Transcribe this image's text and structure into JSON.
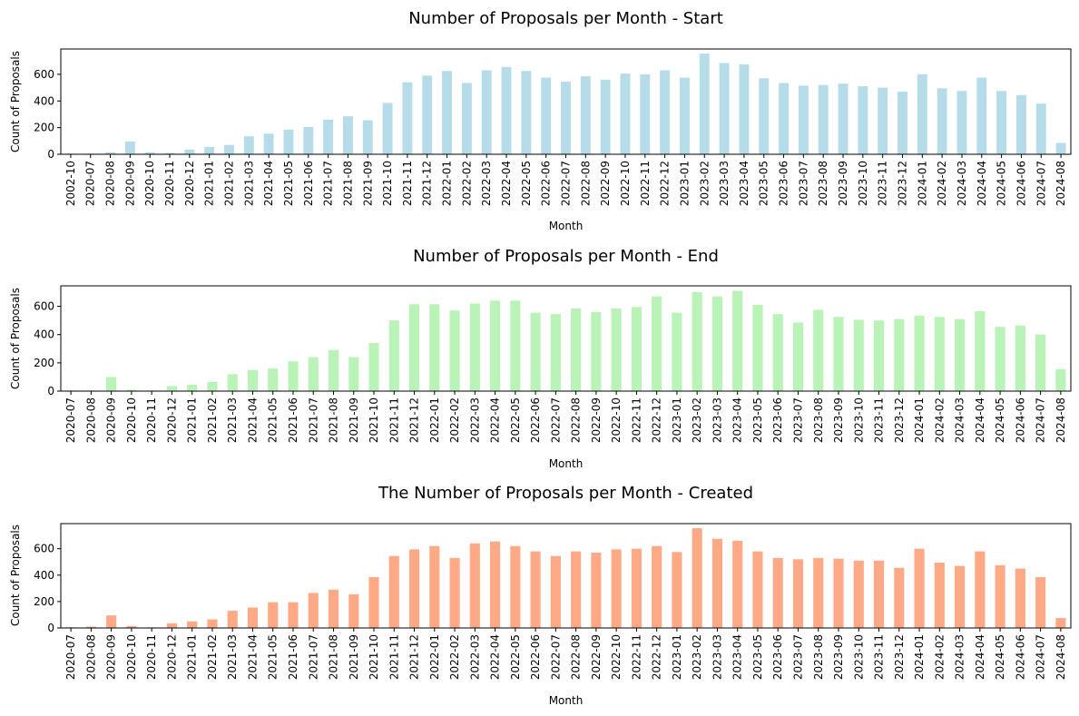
{
  "chart_data": [
    {
      "type": "bar",
      "title": "Number of Proposals per Month - Start",
      "xlabel": "Month",
      "ylabel": "Count of Proposals",
      "ylim": [
        0,
        790
      ],
      "yticks": [
        0,
        200,
        400,
        600
      ],
      "grid": false,
      "color": "#add8e6",
      "categories": [
        "2002-10",
        "2020-07",
        "2020-08",
        "2020-09",
        "2020-10",
        "2020-11",
        "2020-12",
        "2021-01",
        "2021-02",
        "2021-03",
        "2021-04",
        "2021-05",
        "2021-06",
        "2021-07",
        "2021-08",
        "2021-09",
        "2021-10",
        "2021-11",
        "2021-12",
        "2022-01",
        "2022-02",
        "2022-03",
        "2022-04",
        "2022-05",
        "2022-06",
        "2022-07",
        "2022-08",
        "2022-09",
        "2022-10",
        "2022-11",
        "2022-12",
        "2023-01",
        "2023-02",
        "2023-03",
        "2023-04",
        "2023-05",
        "2023-06",
        "2023-07",
        "2023-08",
        "2023-09",
        "2023-10",
        "2023-11",
        "2023-12",
        "2024-01",
        "2024-02",
        "2024-03",
        "2024-04",
        "2024-05",
        "2024-06",
        "2024-07",
        "2024-08"
      ],
      "values": [
        5,
        5,
        15,
        95,
        15,
        10,
        35,
        55,
        70,
        135,
        155,
        185,
        205,
        260,
        285,
        255,
        385,
        540,
        590,
        625,
        535,
        630,
        655,
        625,
        575,
        545,
        585,
        560,
        605,
        600,
        630,
        575,
        755,
        685,
        675,
        570,
        535,
        515,
        520,
        530,
        510,
        500,
        470,
        600,
        495,
        475,
        575,
        475,
        445,
        380,
        85
      ]
    },
    {
      "type": "bar",
      "title": "Number of Proposals per Month - End",
      "xlabel": "Month",
      "ylabel": "Count of Proposals",
      "ylim": [
        0,
        745
      ],
      "yticks": [
        0,
        200,
        400,
        600
      ],
      "grid": false,
      "color": "#b2f2b0",
      "categories": [
        "2020-07",
        "2020-08",
        "2020-09",
        "2020-10",
        "2020-11",
        "2020-12",
        "2021-01",
        "2021-02",
        "2021-03",
        "2021-04",
        "2021-05",
        "2021-06",
        "2021-07",
        "2021-08",
        "2021-09",
        "2021-10",
        "2021-11",
        "2021-12",
        "2022-01",
        "2022-02",
        "2022-03",
        "2022-04",
        "2022-05",
        "2022-06",
        "2022-07",
        "2022-08",
        "2022-09",
        "2022-10",
        "2022-11",
        "2022-12",
        "2023-01",
        "2023-02",
        "2023-03",
        "2023-04",
        "2023-05",
        "2023-06",
        "2023-07",
        "2023-08",
        "2023-09",
        "2023-10",
        "2023-11",
        "2023-12",
        "2024-01",
        "2024-02",
        "2024-03",
        "2024-04",
        "2024-05",
        "2024-06",
        "2024-07",
        "2024-08"
      ],
      "values": [
        5,
        5,
        100,
        10,
        5,
        35,
        45,
        65,
        120,
        150,
        160,
        210,
        240,
        290,
        240,
        340,
        500,
        615,
        615,
        570,
        620,
        640,
        640,
        555,
        545,
        585,
        560,
        585,
        595,
        670,
        555,
        700,
        670,
        710,
        610,
        545,
        485,
        575,
        525,
        505,
        500,
        510,
        535,
        525,
        510,
        565,
        455,
        465,
        400,
        155
      ]
    },
    {
      "type": "bar",
      "title": "The Number of Proposals per Month - Created",
      "xlabel": "Month",
      "ylabel": "Count of Proposals",
      "ylim": [
        0,
        790
      ],
      "yticks": [
        0,
        200,
        400,
        600
      ],
      "grid": false,
      "color": "#ffa07a",
      "categories": [
        "2020-07",
        "2020-08",
        "2020-09",
        "2020-10",
        "2020-11",
        "2020-12",
        "2021-01",
        "2021-02",
        "2021-03",
        "2021-04",
        "2021-05",
        "2021-06",
        "2021-07",
        "2021-08",
        "2021-09",
        "2021-10",
        "2021-11",
        "2021-12",
        "2022-01",
        "2022-02",
        "2022-03",
        "2022-04",
        "2022-05",
        "2022-06",
        "2022-07",
        "2022-08",
        "2022-09",
        "2022-10",
        "2022-11",
        "2022-12",
        "2023-01",
        "2023-02",
        "2023-03",
        "2023-04",
        "2023-05",
        "2023-06",
        "2023-07",
        "2023-08",
        "2023-09",
        "2023-10",
        "2023-11",
        "2023-12",
        "2024-01",
        "2024-02",
        "2024-03",
        "2024-04",
        "2024-05",
        "2024-06",
        "2024-07",
        "2024-08"
      ],
      "values": [
        5,
        10,
        95,
        15,
        5,
        35,
        50,
        65,
        130,
        155,
        195,
        195,
        265,
        290,
        255,
        385,
        545,
        595,
        620,
        530,
        640,
        655,
        620,
        580,
        545,
        580,
        570,
        595,
        600,
        620,
        575,
        755,
        675,
        660,
        580,
        530,
        520,
        530,
        525,
        510,
        510,
        455,
        600,
        495,
        470,
        580,
        475,
        450,
        385,
        75
      ]
    }
  ]
}
